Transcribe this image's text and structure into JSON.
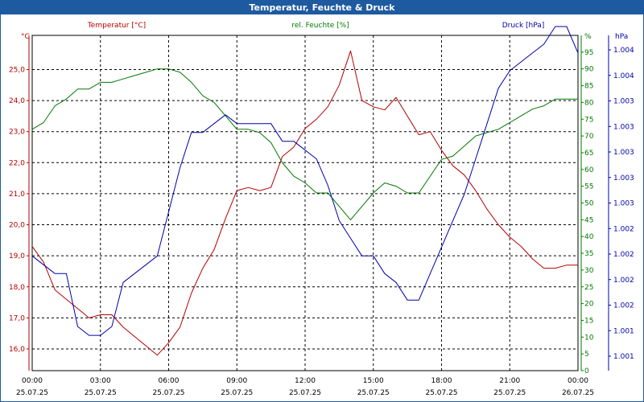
{
  "chart_data": {
    "type": "line",
    "title": "Temperatur, Feuchte & Druck",
    "x_ticks": [
      {
        "time": "00:00",
        "date": "25.07.25"
      },
      {
        "time": "03:00",
        "date": "25.07.25"
      },
      {
        "time": "06:00",
        "date": "25.07.25"
      },
      {
        "time": "09:00",
        "date": "25.07.25"
      },
      {
        "time": "12:00",
        "date": "25.07.25"
      },
      {
        "time": "15:00",
        "date": "25.07.25"
      },
      {
        "time": "18:00",
        "date": "25.07.25"
      },
      {
        "time": "21:00",
        "date": "25.07.25"
      },
      {
        "time": "00:00",
        "date": "26.07.25"
      }
    ],
    "xlim": [
      0,
      24
    ],
    "axes": [
      {
        "id": "temp",
        "label": "Temperatur [°C]",
        "unit": "°C",
        "color": "#b40000",
        "ylim": [
          15.3,
          26.1
        ],
        "ticks": [
          "16,0",
          "17,0",
          "18,0",
          "19,0",
          "20,0",
          "21,0",
          "22,0",
          "23,0",
          "24,0",
          "25,0"
        ]
      },
      {
        "id": "hum",
        "label": "rel. Feuchte [%]",
        "unit": "%",
        "color": "#007800",
        "ylim": [
          0,
          100
        ],
        "ticks": [
          "0",
          "5",
          "10",
          "15",
          "20",
          "25",
          "30",
          "35",
          "40",
          "45",
          "50",
          "55",
          "60",
          "65",
          "70",
          "75",
          "80",
          "85",
          "90",
          "95"
        ]
      },
      {
        "id": "press",
        "label": "Druck [hPa]",
        "unit": "hPa",
        "color": "#0000aa",
        "ylim": [
          1000.5,
          1004.3
        ],
        "ticks": [
          "1.001",
          "1.001",
          "1.002",
          "1.002",
          "1.002",
          "1.002",
          "1.003",
          "1.003",
          "1.003",
          "1.003",
          "1.003",
          "1.004",
          "1.004"
        ]
      }
    ],
    "series": [
      {
        "name": "Temperatur",
        "axis": "temp",
        "color": "#b40000",
        "x": [
          0,
          0.5,
          1,
          1.5,
          2,
          2.5,
          3,
          3.5,
          4,
          4.5,
          5,
          5.5,
          6,
          6.5,
          7,
          7.5,
          8,
          8.5,
          9,
          9.5,
          10,
          10.5,
          11,
          11.5,
          12,
          12.5,
          13,
          13.5,
          14,
          14.5,
          15,
          15.5,
          16,
          16.5,
          17,
          17.5,
          18,
          18.5,
          19,
          19.5,
          20,
          20.5,
          21,
          21.5,
          22,
          22.5,
          23,
          23.5,
          24
        ],
        "y": [
          19.3,
          18.8,
          17.9,
          17.6,
          17.3,
          17.0,
          17.1,
          17.1,
          16.7,
          16.4,
          16.1,
          15.8,
          16.2,
          16.7,
          17.8,
          18.6,
          19.2,
          20.2,
          21.1,
          21.2,
          21.1,
          21.2,
          22.2,
          22.5,
          23.1,
          23.4,
          23.8,
          24.5,
          25.6,
          24.0,
          23.8,
          23.7,
          24.1,
          23.5,
          22.9,
          23.0,
          22.4,
          21.9,
          21.6,
          21.1,
          20.5,
          20.0,
          19.6,
          19.3,
          18.9,
          18.6,
          18.6,
          18.7,
          18.7
        ]
      },
      {
        "name": "rel. Feuchte",
        "axis": "hum",
        "color": "#007800",
        "x": [
          0,
          0.5,
          1,
          1.5,
          2,
          2.5,
          3,
          3.5,
          4,
          4.5,
          5,
          5.5,
          6,
          6.5,
          7,
          7.5,
          8,
          8.5,
          9,
          9.5,
          10,
          10.5,
          11,
          11.5,
          12,
          12.5,
          13,
          13.5,
          14,
          14.5,
          15,
          15.5,
          16,
          16.5,
          17,
          17.5,
          18,
          18.5,
          19,
          19.5,
          20,
          20.5,
          21,
          21.5,
          22,
          22.5,
          23,
          23.5,
          24
        ],
        "y": [
          72,
          74,
          79,
          81,
          84,
          84,
          86,
          86,
          87,
          88,
          89,
          90,
          90,
          89,
          86,
          82,
          80,
          76,
          72,
          72,
          71,
          68,
          62,
          58,
          56,
          53,
          53,
          49,
          45,
          49,
          53,
          56,
          55,
          53,
          53,
          58,
          63,
          64,
          67,
          70,
          71,
          72,
          74,
          76,
          78,
          79,
          81,
          81,
          81
        ]
      },
      {
        "name": "Druck",
        "axis": "press",
        "color": "#0000aa",
        "x": [
          0,
          0.5,
          1,
          1.5,
          2,
          2.5,
          3,
          3.5,
          4,
          4.5,
          5,
          5.5,
          6,
          6.5,
          7,
          7.5,
          8,
          8.5,
          9,
          9.5,
          10,
          10.5,
          11,
          11.5,
          12,
          12.5,
          13,
          13.5,
          14,
          14.5,
          15,
          15.5,
          16,
          16.5,
          17,
          17.5,
          18,
          18.5,
          19,
          19.5,
          20,
          20.5,
          21,
          21.5,
          22,
          22.5,
          23,
          23.5,
          24
        ],
        "y": [
          1001.8,
          1001.7,
          1001.6,
          1001.6,
          1001.0,
          1000.9,
          1000.9,
          1001.0,
          1001.5,
          1001.6,
          1001.7,
          1001.8,
          1002.3,
          1002.8,
          1003.2,
          1003.2,
          1003.3,
          1003.4,
          1003.3,
          1003.3,
          1003.3,
          1003.3,
          1003.1,
          1003.1,
          1003.0,
          1002.9,
          1002.6,
          1002.2,
          1002.0,
          1001.8,
          1001.8,
          1001.6,
          1001.5,
          1001.3,
          1001.3,
          1001.6,
          1001.9,
          1002.2,
          1002.5,
          1002.9,
          1003.3,
          1003.7,
          1003.9,
          1004.0,
          1004.1,
          1004.2,
          1004.4,
          1004.4,
          1004.1
        ]
      }
    ]
  }
}
